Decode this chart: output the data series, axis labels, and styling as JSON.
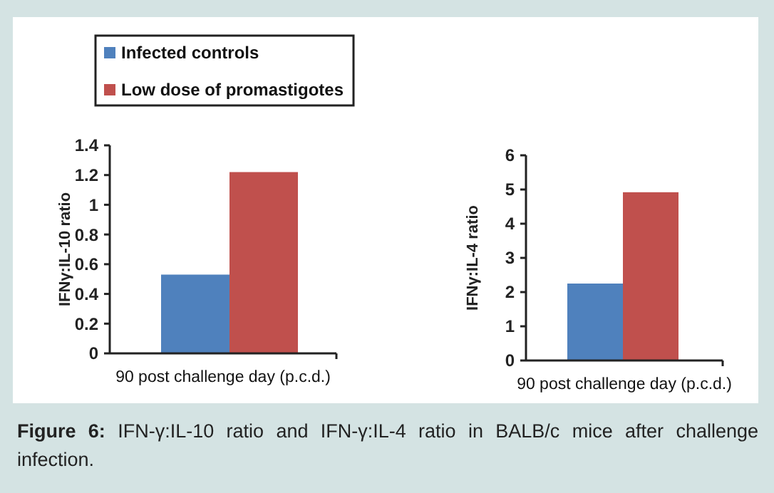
{
  "chart_data": [
    {
      "type": "bar",
      "ylabel": "IFNγ:IL-10 ratio",
      "categories": [
        "90 post challenge day (p.c.d.)"
      ],
      "series": [
        {
          "name": "Infected controls",
          "color": "#4f81bd",
          "values": [
            0.53
          ]
        },
        {
          "name": "Low dose of promastigotes",
          "color": "#c0504d",
          "values": [
            1.22
          ]
        }
      ],
      "ylim": [
        0,
        1.4
      ],
      "yticks": [
        0,
        0.2,
        0.4,
        0.6,
        0.8,
        1,
        1.2,
        1.4
      ],
      "legend": "top left",
      "grid": false,
      "annotations": [
        "Figure 6:  IFN-γ:IL-10 ratio and IFN-γ:IL-4 ratio in BALB/c mice after challenge infection."
      ]
    },
    {
      "type": "bar",
      "ylabel": "IFNγ:IL-4 ratio",
      "categories": [
        "90 post challenge day (p.c.d.)"
      ],
      "series": [
        {
          "color": "#4f81bd",
          "values": [
            2.25
          ]
        },
        {
          "color": "#c0504d",
          "values": [
            4.92
          ]
        }
      ],
      "ylim": [
        0,
        6
      ],
      "yticks": [
        0,
        1,
        2,
        3,
        4,
        5,
        6
      ],
      "grid": false
    }
  ]
}
